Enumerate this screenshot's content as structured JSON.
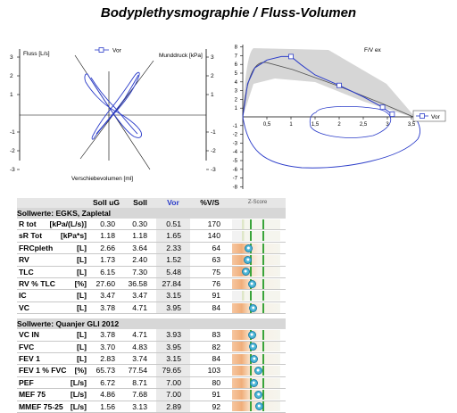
{
  "title": "Bodyplethysmographie / Fluss-Volumen",
  "left_chart": {
    "ylabel_left": "Fluss [L/s]",
    "ylabel_right": "Munddruck [kPa]",
    "xlabel": "Verschiebevolumen [ml]",
    "legend": "Vor",
    "left_ticks": [
      "3",
      "2",
      "1",
      "-1",
      "-2",
      "-3"
    ],
    "right_ticks": [
      "3",
      "2",
      "1",
      "-1",
      "-2",
      "-3"
    ],
    "series_color": "#2b3cc9"
  },
  "chart_data": {
    "type": "line",
    "title": "F/V ex",
    "legend": [
      "Vor"
    ],
    "xlim": [
      0,
      3.5
    ],
    "ylim": [
      -8,
      8
    ],
    "x_ticks": [
      "0,5",
      "1",
      "1,5",
      "2",
      "2,5",
      "3",
      "3,5"
    ],
    "y_ticks": [
      "8",
      "7",
      "6",
      "5",
      "4",
      "3",
      "2",
      "1",
      "-1",
      "-2",
      "-3",
      "-4",
      "-5",
      "-6",
      "-7",
      "-8"
    ],
    "series": [
      {
        "name": "Vor",
        "color": "#2b3cc9",
        "x": [
          0.0,
          0.1,
          0.25,
          0.5,
          0.8,
          1.0,
          1.2,
          1.5,
          2.0,
          2.5,
          2.9,
          3.1,
          3.15
        ],
        "y": [
          0.0,
          3.8,
          5.6,
          6.5,
          6.9,
          6.9,
          6.0,
          4.8,
          3.6,
          2.3,
          1.1,
          0.3,
          0.0
        ],
        "markers": [
          {
            "x": 1.0,
            "y": 6.9
          },
          {
            "x": 2.0,
            "y": 3.6
          },
          {
            "x": 2.9,
            "y": 1.1
          },
          {
            "x": 3.1,
            "y": 0.3
          }
        ]
      }
    ]
  },
  "table": {
    "headers": [
      "Soll uG",
      "Soll",
      "Vor",
      "%V/S",
      "Z-Score"
    ],
    "sections": [
      {
        "title": "Sollwerte: EGKS, Zapletal",
        "rows": [
          {
            "name": "R tot",
            "unit": "[kPa/(L/s)]",
            "soll_ug": "0.30",
            "soll": "0.30",
            "vor": "0.51",
            "pct": "170",
            "z": null
          },
          {
            "name": "sR Tot",
            "unit": "[kPa*s]",
            "soll_ug": "1.18",
            "soll": "1.18",
            "vor": "1.65",
            "pct": "140",
            "z": null
          },
          {
            "name": "FRCpleth",
            "unit": "[L]",
            "soll_ug": "2.66",
            "soll": "3.64",
            "vor": "2.33",
            "pct": "64",
            "z": 0.34
          },
          {
            "name": "RV",
            "unit": "[L]",
            "soll_ug": "1.73",
            "soll": "2.40",
            "vor": "1.52",
            "pct": "63",
            "z": 0.33
          },
          {
            "name": "TLC",
            "unit": "[L]",
            "soll_ug": "6.15",
            "soll": "7.30",
            "vor": "5.48",
            "pct": "75",
            "z": 0.28
          },
          {
            "name": "RV % TLC",
            "unit": "[%]",
            "soll_ug": "27.60",
            "soll": "36.58",
            "vor": "27.84",
            "pct": "76",
            "z": 0.41
          },
          {
            "name": "IC",
            "unit": "[L]",
            "soll_ug": "3.47",
            "soll": "3.47",
            "vor": "3.15",
            "pct": "91",
            "z": null
          },
          {
            "name": "VC",
            "unit": "[L]",
            "soll_ug": "3.78",
            "soll": "4.71",
            "vor": "3.95",
            "pct": "84",
            "z": 0.44
          }
        ]
      },
      {
        "title": "Sollwerte: Quanjer GLI 2012",
        "rows": [
          {
            "name": "VC IN",
            "unit": "[L]",
            "soll_ug": "3.78",
            "soll": "4.71",
            "vor": "3.93",
            "pct": "83",
            "z": 0.41
          },
          {
            "name": "FVC",
            "unit": "[L]",
            "soll_ug": "3.70",
            "soll": "4.83",
            "vor": "3.95",
            "pct": "82",
            "z": 0.43
          },
          {
            "name": "FEV 1",
            "unit": "[L]",
            "soll_ug": "2.83",
            "soll": "3.74",
            "vor": "3.15",
            "pct": "84",
            "z": 0.46
          },
          {
            "name": "FEV 1 % FVC",
            "unit": "[%]",
            "soll_ug": "65.73",
            "soll": "77.54",
            "vor": "79.65",
            "pct": "103",
            "z": 0.54
          },
          {
            "name": "PEF",
            "unit": "[L/s]",
            "soll_ug": "6.72",
            "soll": "8.71",
            "vor": "7.00",
            "pct": "80",
            "z": 0.45
          },
          {
            "name": "MEF 75",
            "unit": "[L/s]",
            "soll_ug": "4.86",
            "soll": "7.68",
            "vor": "7.00",
            "pct": "91",
            "z": 0.55
          },
          {
            "name": "MMEF 75-25",
            "unit": "[L/s]",
            "soll_ug": "1.56",
            "soll": "3.13",
            "vor": "2.89",
            "pct": "92",
            "z": 0.56
          }
        ]
      }
    ]
  }
}
